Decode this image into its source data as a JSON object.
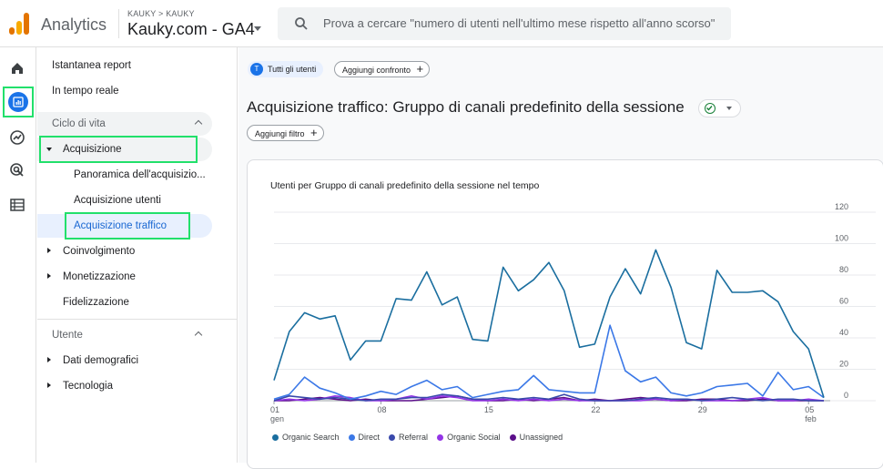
{
  "topbar": {
    "app_name": "Analytics",
    "breadcrumb": "KAUKY > KAUKY",
    "property": "Kauky.com - GA4",
    "search_placeholder": "Prova a cercare \"numero di utenti nell'ultimo mese rispetto all'anno scorso\""
  },
  "nav": {
    "snapshot": "Istantanea report",
    "realtime": "In tempo reale",
    "lifecycle": "Ciclo di vita",
    "acquisition": "Acquisizione",
    "acq_overview": "Panoramica dell'acquisizio...",
    "acq_users": "Acquisizione utenti",
    "acq_traffic": "Acquisizione traffico",
    "engagement": "Coinvolgimento",
    "monetization": "Monetizzazione",
    "retention": "Fidelizzazione",
    "user_section": "Utente",
    "demographics": "Dati demografici",
    "technology": "Tecnologia"
  },
  "main": {
    "avatar_letter": "T",
    "all_users": "Tutti gli utenti",
    "add_comparison": "Aggiungi confronto",
    "title": "Acquisizione traffico: Gruppo di canali predefinito della sessione",
    "add_filter": "Aggiungi filtro"
  },
  "chart_data": {
    "type": "line",
    "title": "Utenti per Gruppo di canali predefinito della sessione nel tempo",
    "y_ticks": [
      "120",
      "100",
      "80",
      "60",
      "40",
      "20",
      "0"
    ],
    "ylim": [
      0,
      120
    ],
    "x_tick_labels": [
      {
        "day": 0,
        "label": "01",
        "sub": "gen"
      },
      {
        "day": 7,
        "label": "08",
        "sub": ""
      },
      {
        "day": 14,
        "label": "15",
        "sub": ""
      },
      {
        "day": 21,
        "label": "22",
        "sub": ""
      },
      {
        "day": 28,
        "label": "29",
        "sub": ""
      },
      {
        "day": 35,
        "label": "05",
        "sub": "feb"
      }
    ],
    "legend_position": "bottom",
    "grid": true,
    "series": [
      {
        "name": "Organic Search",
        "color": "#1a6e9f",
        "values": [
          13,
          44,
          56,
          52,
          54,
          26,
          38,
          38,
          65,
          64,
          82,
          61,
          66,
          39,
          38,
          85,
          70,
          77,
          88,
          70,
          34,
          36,
          66,
          84,
          68,
          96,
          72,
          37,
          33,
          83,
          69,
          69,
          70,
          63,
          44,
          33,
          2
        ]
      },
      {
        "name": "Direct",
        "color": "#3b78e7",
        "values": [
          1,
          4,
          15,
          8,
          5,
          1,
          3,
          6,
          4,
          9,
          13,
          7,
          9,
          2,
          4,
          6,
          7,
          16,
          7,
          6,
          5,
          5,
          48,
          19,
          12,
          15,
          5,
          3,
          5,
          9,
          10,
          11,
          3,
          18,
          7,
          9,
          2
        ]
      },
      {
        "name": "Referral",
        "color": "#3949ab",
        "values": [
          0,
          3,
          2,
          1,
          2,
          1,
          0,
          1,
          1,
          2,
          2,
          4,
          3,
          1,
          1,
          2,
          1,
          2,
          1,
          4,
          1,
          0,
          0,
          0,
          1,
          2,
          1,
          1,
          0,
          1,
          2,
          1,
          0,
          1,
          1,
          0,
          0
        ]
      },
      {
        "name": "Organic Social",
        "color": "#9334e6",
        "values": [
          0,
          1,
          0,
          1,
          3,
          2,
          0,
          0,
          1,
          3,
          1,
          3,
          2,
          0,
          0,
          1,
          0,
          1,
          0,
          1,
          0,
          0,
          0,
          0,
          0,
          1,
          0,
          1,
          0,
          0,
          0,
          1,
          2,
          0,
          0,
          1,
          0
        ]
      },
      {
        "name": "Unassigned",
        "color": "#5b0f8a",
        "values": [
          0,
          0,
          1,
          2,
          1,
          0,
          1,
          0,
          0,
          0,
          1,
          2,
          3,
          1,
          0,
          0,
          1,
          0,
          1,
          2,
          0,
          1,
          0,
          1,
          2,
          1,
          0,
          0,
          1,
          1,
          0,
          0,
          1,
          0,
          0,
          0,
          0
        ]
      }
    ]
  }
}
